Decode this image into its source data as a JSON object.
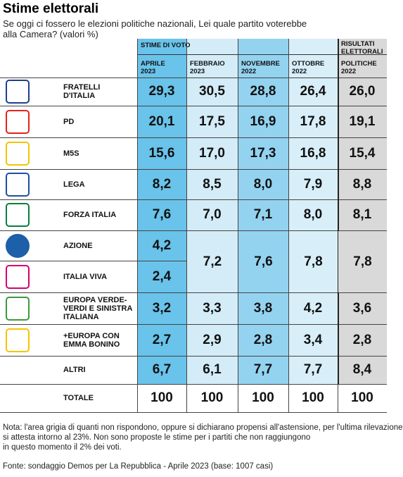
{
  "header": {
    "title": "Stime elettorali",
    "subtitle": "Se oggi ci fossero le elezioni politiche nazionali, Lei quale partito voterebbe\nalla Camera? (valori %)"
  },
  "table": {
    "groups": [
      "STIME DI VOTO",
      "RISULTATI\nELETTORALI"
    ],
    "columns": [
      "APRILE\n2023",
      "FEBBRAIO\n2023",
      "NOVEMBRE\n2022",
      "OTTOBRE\n2022",
      "POLITICHE\n2022"
    ],
    "rows": [
      {
        "party": "FRATELLI\nD'ITALIA",
        "values": [
          "29,3",
          "30,5",
          "28,8",
          "26,4",
          "26,0"
        ]
      },
      {
        "party": "PD",
        "values": [
          "20,1",
          "17,5",
          "16,9",
          "17,8",
          "19,1"
        ]
      },
      {
        "party": "M5S",
        "values": [
          "15,6",
          "17,0",
          "17,3",
          "16,8",
          "15,4"
        ]
      },
      {
        "party": "LEGA",
        "values": [
          "8,2",
          "8,5",
          "8,0",
          "7,9",
          "8,8"
        ]
      },
      {
        "party": "FORZA ITALIA",
        "values": [
          "7,6",
          "7,0",
          "7,1",
          "8,0",
          "8,1"
        ]
      },
      {
        "party": "AZIONE",
        "values": [
          "4,2"
        ]
      },
      {
        "party": "ITALIA VIVA",
        "values": [
          "2,4"
        ]
      },
      {
        "party": "EUROPA VERDE-\nVERDI E SINISTRA\nITALIANA",
        "values": [
          "3,2",
          "3,3",
          "3,8",
          "4,2",
          "3,6"
        ]
      },
      {
        "party": "+EUROPA CON\nEMMA BONINO",
        "values": [
          "2,7",
          "2,9",
          "2,8",
          "3,4",
          "2,8"
        ]
      },
      {
        "party": "ALTRI",
        "values": [
          "6,7",
          "6,1",
          "7,7",
          "7,7",
          "8,4"
        ]
      }
    ],
    "merged": {
      "values": [
        "7,2",
        "7,6",
        "7,8",
        "7,8"
      ]
    },
    "total": {
      "label": "TOTALE",
      "values": [
        "100",
        "100",
        "100",
        "100",
        "100"
      ]
    }
  },
  "note": "Nota: l'area grigia di quanti non rispondono, oppure si dichiarano propensi all'astensione, per l'ultima rilevazione\nsi attesta intorno al 23%. Non sono proposte le stime per i partiti che non raggiungono\nin questo momento il 2% dei voti.",
  "source": "Fonte: sondaggio Demos per La Repubblica - Aprile 2023 (base: 1007 casi)"
}
